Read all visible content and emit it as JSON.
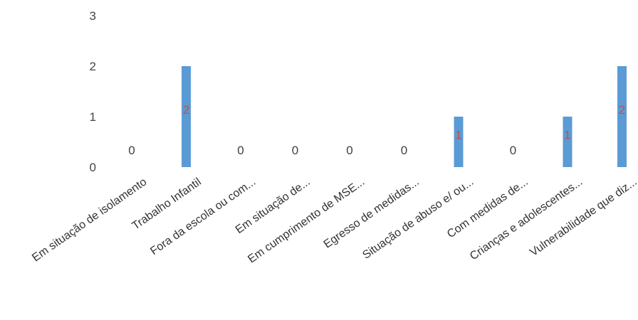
{
  "chart_data": {
    "type": "bar",
    "title": "",
    "xlabel": "",
    "ylabel": "",
    "ylim": [
      0,
      3
    ],
    "yticks": [
      "0",
      "1",
      "2",
      "3"
    ],
    "grid": false,
    "legend": "none",
    "categories": [
      "Em situação de isolamento",
      "Trabalho Infantil",
      "Fora da escola ou com...",
      "Em situação de...",
      "Em cumprimento de MSE...",
      "Egresso de medidas...",
      "Situação de abuso e/ ou...",
      "Com medidas de...",
      "Crianças e adolescentes...",
      "Vulnerabilidade que diz..."
    ],
    "values": [
      0,
      2,
      0,
      0,
      0,
      0,
      1,
      0,
      1,
      2
    ],
    "data_labels": [
      "0",
      "2",
      "0",
      "0",
      "0",
      "0",
      "1",
      "0",
      "1",
      "2"
    ],
    "colors": {
      "bar": "#5b9bd5",
      "label_on_bar": "#c0504d",
      "label_zero": "#404040"
    }
  }
}
